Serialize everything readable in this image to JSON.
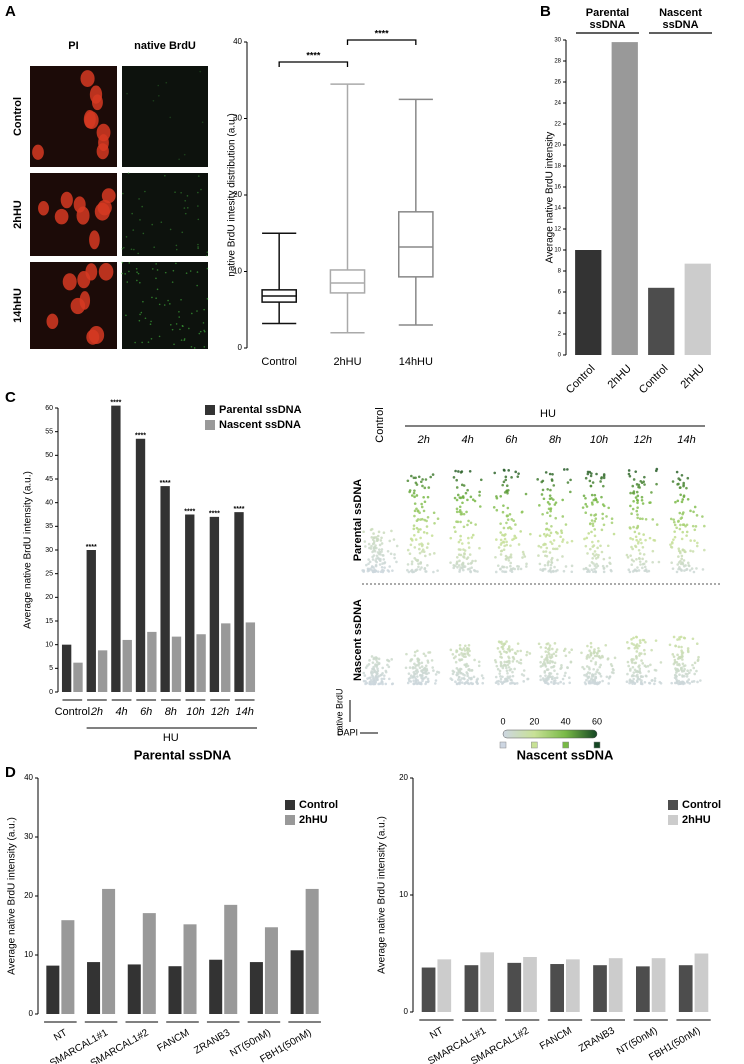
{
  "panel_labels": [
    "A",
    "B",
    "C",
    "D"
  ],
  "microscopy": {
    "columns": [
      "PI",
      "native BrdU"
    ],
    "rows": [
      "Control",
      "2hHU",
      "14hHU"
    ]
  },
  "flow_plots": {
    "control": "Control",
    "group": "HU",
    "times": [
      "2h",
      "4h",
      "6h",
      "8h",
      "10h",
      "12h",
      "14h"
    ],
    "rows": [
      "Parental ssDNA",
      "Nascent ssDNA"
    ],
    "y_axis": "native BrdU",
    "x_axis": "DAPI",
    "colorbar": {
      "range": [
        0,
        60
      ],
      "ticks": [
        0,
        20,
        40,
        60
      ]
    }
  },
  "chart_data": [
    {
      "type": "box",
      "y_label": "native BrdU intesity distribution (a.u.)",
      "categories": [
        "Control",
        "2hHU",
        "14hHU"
      ],
      "stats": [
        {
          "min": 3.2,
          "q1": 6,
          "median": 6.8,
          "q3": 7.6,
          "max": 15
        },
        {
          "min": 2,
          "q1": 7.2,
          "median": 8.5,
          "q3": 10.2,
          "max": 34.5
        },
        {
          "min": 3,
          "q1": 9.3,
          "median": 13.2,
          "q3": 17.8,
          "max": 32.5
        }
      ],
      "colors": [
        "#111111",
        "#aaaaaa",
        "#888888"
      ],
      "ylim": [
        0,
        40
      ],
      "yticks": [
        0,
        10,
        20,
        30,
        40
      ],
      "annotations": [
        {
          "label": "****",
          "between": [
            "Control",
            "2hHU"
          ]
        },
        {
          "label": "****",
          "between": [
            "2hHU",
            "14hHU"
          ]
        }
      ]
    },
    {
      "type": "bar",
      "y_label": "Average native BrdU intensity",
      "categories": [
        "Control",
        "2hHU",
        "Control",
        "2hHU"
      ],
      "values": [
        10,
        29.8,
        6.4,
        8.7
      ],
      "colors": [
        "#333333",
        "#999999",
        "#4d4d4d",
        "#cccccc"
      ],
      "groups": [
        "Parental ssDNA",
        "Nascent ssDNA"
      ],
      "ylim": [
        0,
        30
      ],
      "yticks": [
        0,
        2,
        4,
        6,
        8,
        10,
        12,
        14,
        16,
        18,
        20,
        22,
        24,
        26,
        28,
        30
      ]
    },
    {
      "type": "grouped_bar",
      "y_label": "Average native BrdU intensity (a.u.)",
      "categories": [
        "Control",
        "2h",
        "4h",
        "6h",
        "8h",
        "10h",
        "12h",
        "14h"
      ],
      "series": [
        {
          "name": "Parental ssDNA",
          "color": "#333333",
          "values": [
            10,
            30,
            60.5,
            53.5,
            43.5,
            37.5,
            37,
            38
          ]
        },
        {
          "name": "Nascent ssDNA",
          "color": "#999999",
          "values": [
            6.2,
            8.8,
            11,
            12.7,
            11.7,
            12.2,
            14.5,
            14.7
          ]
        }
      ],
      "significance": [
        null,
        "****",
        "****",
        "****",
        "****",
        "****",
        "****",
        "****"
      ],
      "group_label": "HU",
      "legend": "top-right",
      "ylim": [
        0,
        60
      ],
      "yticks": [
        0,
        5,
        10,
        15,
        20,
        25,
        30,
        35,
        40,
        45,
        50,
        55,
        60
      ]
    },
    {
      "type": "grouped_bar",
      "title": "Parental ssDNA",
      "y_label": "Average native BrdU intensity (a.u.)",
      "categories": [
        "NT",
        "SMARCAL1#1",
        "SMARCAL1#2",
        "FANCM",
        "ZRANB3",
        "NT(50nM)",
        "FBH1(50nM)"
      ],
      "series": [
        {
          "name": "Control",
          "color": "#333333",
          "values": [
            8.2,
            8.8,
            8.4,
            8.1,
            9.2,
            8.8,
            10.8
          ]
        },
        {
          "name": "2hHU",
          "color": "#999999",
          "values": [
            15.9,
            21.2,
            17.1,
            15.2,
            18.5,
            14.7,
            21.2
          ]
        }
      ],
      "legend": "top-right",
      "ylim": [
        0,
        40
      ],
      "yticks": [
        0,
        10,
        20,
        30,
        40
      ]
    },
    {
      "type": "grouped_bar",
      "title": "Nascent ssDNA",
      "y_label": "Average native BrdU intensity (a.u.)",
      "categories": [
        "NT",
        "SMARCAL1#1",
        "SMARCAL1#2",
        "FANCM",
        "ZRANB3",
        "NT(50nM)",
        "FBH1(50nM)"
      ],
      "series": [
        {
          "name": "Control",
          "color": "#4d4d4d",
          "values": [
            3.8,
            4.0,
            4.2,
            4.1,
            4.0,
            3.9,
            4.0
          ]
        },
        {
          "name": "2hHU",
          "color": "#cccccc",
          "values": [
            4.5,
            5.1,
            4.7,
            4.5,
            4.6,
            4.6,
            5.0
          ]
        }
      ],
      "legend": "top-right",
      "ylim": [
        0,
        20
      ],
      "yticks": [
        0,
        10,
        20
      ]
    }
  ]
}
